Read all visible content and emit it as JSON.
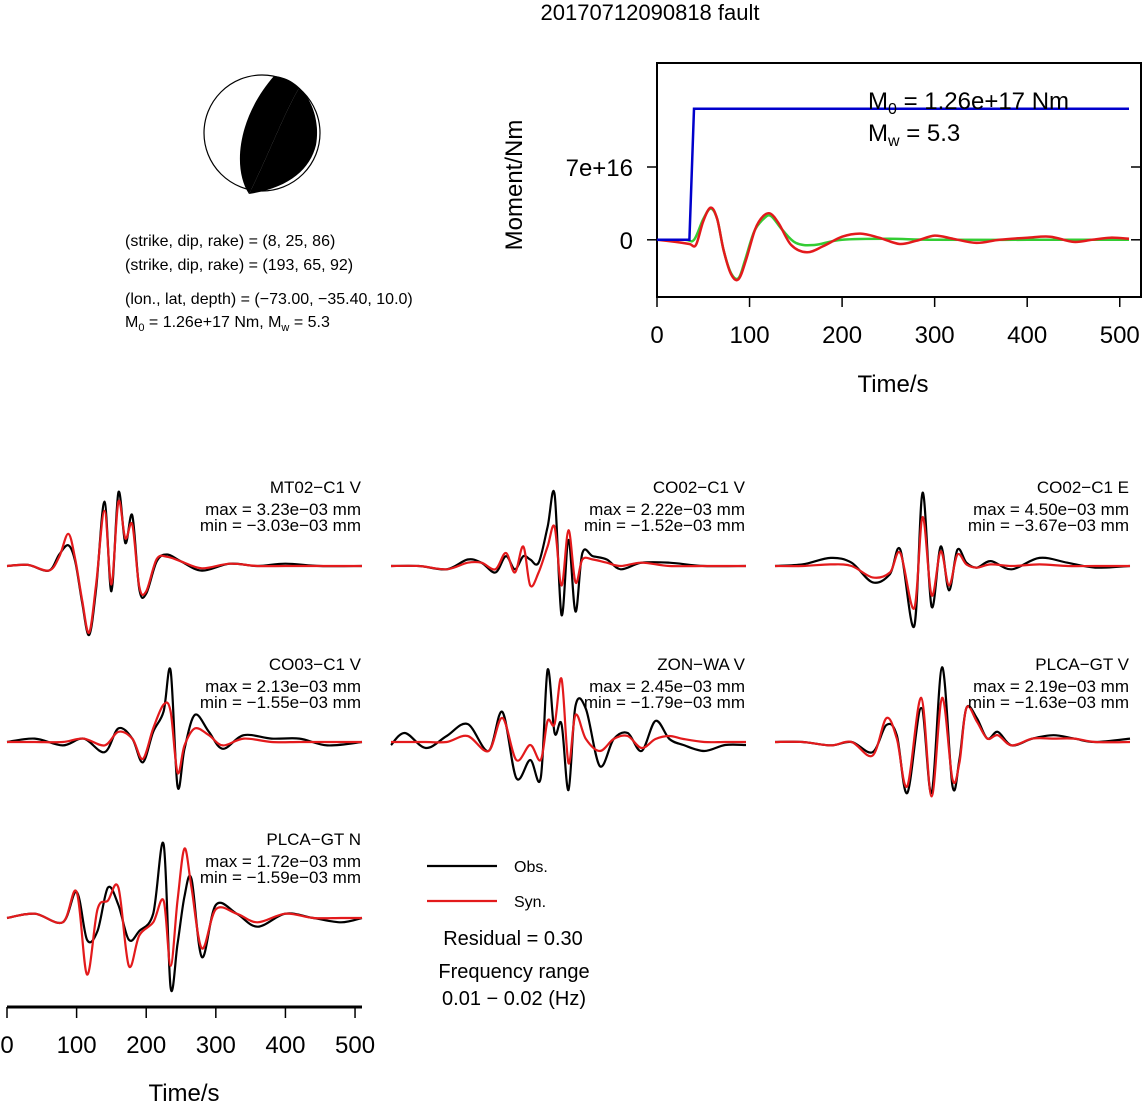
{
  "figure": {
    "title": "20170712090818 fault",
    "focal_mechanism": {
      "nodal_plane_1": "(strike, dip, rake) = (8, 25, 86)",
      "nodal_plane_2": "(strike, dip, rake) = (193, 65, 92)",
      "location": "(lon., lat, depth) = (−73.00, −35.40, 10.0)",
      "moment_prefix": "M",
      "moment_sub": "0",
      "moment_mid": " = 1.26e+17 Nm, M",
      "mw_sub": "w",
      "mw_value": " = 5.3"
    },
    "legend": {
      "obs_label": "Obs.",
      "syn_label": "Syn.",
      "residual": "Residual = 0.30",
      "freq_title": "Frequency range",
      "freq_value": "0.01 − 0.02 (Hz)"
    },
    "colors": {
      "observed": "#000000",
      "synthetic": "#e31a1c",
      "moment_cumulative": "#0000cc",
      "moment_rate_smooth": "#33cc33"
    }
  },
  "chart_data": [
    {
      "type": "line",
      "title": "",
      "xlabel": "Time/s",
      "ylabel": "Moment/Nm",
      "xlim": [
        0,
        510
      ],
      "ylim": [
        -5.5e+16,
        1.7e+17
      ],
      "xticks": [
        0,
        100,
        200,
        300,
        400,
        500
      ],
      "yticks": [
        {
          "value": 0,
          "label": "0"
        },
        {
          "value": 7e+16,
          "label": "7e+16"
        }
      ],
      "annotation": {
        "m0_prefix": "M",
        "m0_sub": "0",
        "m0_value": " = 1.26e+17 Nm",
        "mw_prefix": "M",
        "mw_sub": "w",
        "mw_value": " = 5.3"
      },
      "series": [
        {
          "color": "blue",
          "x": [
            0,
            35,
            40,
            510
          ],
          "y": [
            0,
            0,
            1.26e+17,
            1.26e+17
          ]
        },
        {
          "color": "green",
          "x": [
            0,
            30,
            40,
            50,
            58,
            65,
            72,
            80,
            88,
            95,
            105,
            115,
            123,
            135,
            150,
            170,
            200,
            250,
            300,
            400,
            510
          ],
          "y": [
            0,
            0,
            0,
            2e+16,
            3e+16,
            2e+16,
            -1e+16,
            -3.2e+16,
            -3.7e+16,
            -2e+16,
            8000000000000000.0,
            2e+16,
            2.3e+16,
            1e+16,
            -3000000000000000.0,
            -5000000000000000.0,
            0,
            1000000000000000.0,
            0,
            0,
            0
          ]
        },
        {
          "color": "red",
          "x": [
            0,
            20,
            35,
            42,
            50,
            58,
            65,
            72,
            80,
            88,
            96,
            106,
            115,
            123,
            132,
            145,
            162,
            180,
            200,
            220,
            240,
            262,
            280,
            300,
            320,
            345,
            370,
            400,
            425,
            450,
            470,
            490,
            510
          ],
          "y": [
            0,
            -2000000000000000.0,
            -4000000000000000.0,
            -5000000000000000.0,
            1.8e+16,
            3.1e+16,
            2e+16,
            -1e+16,
            -3.3e+16,
            -3.8e+16,
            -2e+16,
            1e+16,
            2.3e+16,
            2.5e+16,
            1.5e+16,
            -5000000000000000.0,
            -1.2e+16,
            -6000000000000000.0,
            3000000000000000.0,
            6000000000000000.0,
            2000000000000000.0,
            -4000000000000000.0,
            -1000000000000000.0,
            4000000000000000.0,
            1000000000000000.0,
            -3000000000000000.0,
            0,
            2000000000000000.0,
            3000000000000000.0,
            -2000000000000000.0,
            0,
            2000000000000000.0,
            1000000000000000.0
          ]
        }
      ]
    },
    {
      "type": "line",
      "title": "MT02−C1 V",
      "max_label": "max = 3.23e−03 mm",
      "min_label": "min = −3.03e−03 mm",
      "xlim": [
        0,
        510
      ],
      "ylim": [
        -0.0034,
        0.0034
      ],
      "series": [
        {
          "name": "Obs.",
          "x": [
            0,
            30,
            60,
            75,
            88,
            98,
            108,
            118,
            128,
            140,
            150,
            160,
            170,
            180,
            190,
            200,
            215,
            230,
            250,
            280,
            320,
            360,
            400,
            450,
            510
          ],
          "y": [
            0,
            5e-05,
            -0.0002,
            0.0005,
            0.0009,
            0.0002,
            -0.0016,
            -0.003,
            -0.001,
            0.0028,
            -0.0011,
            0.0032,
            0.001,
            0.0022,
            -0.001,
            -0.0012,
            0.0002,
            0.0005,
            0.0002,
            -0.0002,
            0.0001,
            0,
            0.0001,
            0,
            0
          ]
        },
        {
          "name": "Syn.",
          "x": [
            0,
            30,
            60,
            75,
            88,
            98,
            108,
            118,
            128,
            140,
            150,
            160,
            170,
            180,
            190,
            200,
            215,
            230,
            250,
            280,
            320,
            360,
            400,
            450,
            510
          ],
          "y": [
            0,
            5e-05,
            -0.0002,
            0.0004,
            0.0014,
            0.0003,
            -0.0015,
            -0.0029,
            -0.0008,
            0.0024,
            -0.0008,
            0.0028,
            0.0012,
            0.0018,
            -0.0009,
            -0.0011,
            0.0003,
            0.0004,
            0.0002,
            -0.0001,
            0.0001,
            0,
            0,
            0,
            0
          ]
        }
      ]
    },
    {
      "type": "line",
      "title": "CO02−C1 V",
      "max_label": "max = 2.22e−03 mm",
      "min_label": "min = −1.52e−03 mm",
      "xlim": [
        0,
        510
      ],
      "ylim": [
        -0.0016,
        0.0024
      ],
      "series": [
        {
          "name": "Obs.",
          "x": [
            0,
            40,
            80,
            110,
            130,
            150,
            165,
            178,
            190,
            200,
            212,
            225,
            235,
            245,
            255,
            265,
            275,
            290,
            310,
            330,
            360,
            400,
            450,
            510
          ],
          "y": [
            0,
            0,
            -0.0001,
            0.0002,
            0.0001,
            -0.0002,
            0.0003,
            -0.0001,
            0.0003,
            0.0002,
            0.0001,
            0.0012,
            0.0022,
            -0.0015,
            0.0008,
            -0.0014,
            0.0004,
            0.0003,
            0.0002,
            -0.0001,
            0.0001,
            0.0001,
            0,
            0
          ]
        },
        {
          "name": "Syn.",
          "x": [
            0,
            40,
            80,
            110,
            130,
            150,
            165,
            178,
            190,
            200,
            212,
            225,
            235,
            245,
            255,
            265,
            275,
            290,
            310,
            330,
            360,
            400,
            450,
            510
          ],
          "y": [
            0,
            0,
            -0.0001,
            0.0001,
            0.0001,
            -0.0001,
            0.0004,
            -0.0002,
            0.0006,
            -0.0006,
            -0.0002,
            0.0006,
            0.0012,
            -0.0006,
            0.0011,
            -0.0005,
            0.0002,
            0.0002,
            0.0001,
            0,
            0.0001,
            0,
            0,
            0
          ]
        }
      ]
    },
    {
      "type": "line",
      "title": "CO02−C1 E",
      "max_label": "max = 4.50e−03 mm",
      "min_label": "min = −3.67e−03 mm",
      "xlim": [
        0,
        510
      ],
      "ylim": [
        -0.004,
        0.0048
      ],
      "series": [
        {
          "name": "Obs.",
          "x": [
            0,
            40,
            80,
            110,
            140,
            165,
            180,
            200,
            212,
            225,
            238,
            250,
            262,
            275,
            290,
            310,
            340,
            380,
            420,
            460,
            510
          ],
          "y": [
            0,
            0.0001,
            0.0005,
            0.0002,
            -0.001,
            -0.0005,
            0.001,
            -0.0037,
            0.0045,
            -0.0025,
            0.0012,
            -0.0015,
            0.001,
            0.0002,
            -0.0001,
            0.0003,
            -0.0002,
            0.0005,
            0.0002,
            -0.0001,
            0
          ]
        },
        {
          "name": "Syn.",
          "x": [
            0,
            40,
            80,
            110,
            140,
            165,
            180,
            200,
            212,
            225,
            238,
            250,
            262,
            275,
            290,
            310,
            340,
            380,
            420,
            460,
            510
          ],
          "y": [
            0,
            0,
            0.0001,
            0,
            -0.0007,
            -0.0004,
            0.0008,
            -0.0026,
            0.003,
            -0.0018,
            0.0009,
            -0.0012,
            0.0007,
            0.0001,
            -0.0001,
            0.0001,
            0,
            0.0001,
            0,
            0,
            0
          ]
        }
      ]
    },
    {
      "type": "line",
      "title": "CO03−C1 V",
      "max_label": "max = 2.13e−03 mm",
      "min_label": "min = −1.55e−03 mm",
      "xlim": [
        0,
        510
      ],
      "ylim": [
        -0.0017,
        0.0023
      ],
      "series": [
        {
          "name": "Obs.",
          "x": [
            0,
            40,
            80,
            110,
            140,
            160,
            180,
            195,
            210,
            225,
            235,
            245,
            255,
            270,
            290,
            310,
            340,
            380,
            420,
            460,
            510
          ],
          "y": [
            0,
            0.0001,
            -0.0001,
            0.0001,
            -0.0003,
            0.0004,
            0.0001,
            -0.0006,
            0.0003,
            0.0009,
            0.0021,
            -0.0013,
            -0.0002,
            0.0008,
            0.0003,
            -0.0002,
            0.0002,
            0.0001,
            0.0001,
            -0.0001,
            0
          ]
        },
        {
          "name": "Syn.",
          "x": [
            0,
            40,
            80,
            110,
            140,
            160,
            180,
            195,
            210,
            225,
            235,
            245,
            255,
            270,
            290,
            310,
            340,
            380,
            420,
            460,
            510
          ],
          "y": [
            0,
            0,
            0,
            0.0001,
            -0.0001,
            0.0003,
            0.0001,
            -0.0005,
            0.0004,
            0.0011,
            0.0009,
            -0.0009,
            -0.0001,
            0.0004,
            0.0002,
            -0.0001,
            0.0001,
            0,
            0,
            0,
            0
          ]
        }
      ]
    },
    {
      "type": "line",
      "title": "ZON−WA V",
      "max_label": "max = 2.45e−03 mm",
      "min_label": "min = −1.79e−03 mm",
      "xlim": [
        0,
        510
      ],
      "ylim": [
        -0.0019,
        0.0026
      ],
      "series": [
        {
          "name": "Obs.",
          "x": [
            0,
            20,
            50,
            80,
            110,
            140,
            160,
            180,
            200,
            215,
            225,
            235,
            245,
            255,
            265,
            280,
            300,
            320,
            340,
            360,
            380,
            400,
            420,
            450,
            480,
            510
          ],
          "y": [
            -0.0001,
            0.0003,
            -0.0002,
            0.0002,
            0.0006,
            -0.0003,
            0.001,
            -0.0012,
            -0.0006,
            -0.0012,
            0.0024,
            0.0003,
            0.0006,
            -0.0016,
            0.0012,
            0.0011,
            -0.0008,
            0.0001,
            0.0003,
            -0.0003,
            0.0007,
            0.0001,
            -0.0001,
            -0.0003,
            -0.0001,
            -0.0001
          ]
        },
        {
          "name": "Syn.",
          "x": [
            0,
            20,
            50,
            80,
            110,
            140,
            160,
            180,
            200,
            215,
            225,
            235,
            245,
            255,
            265,
            280,
            300,
            320,
            340,
            360,
            380,
            400,
            420,
            450,
            480,
            510
          ],
          "y": [
            0,
            0,
            0,
            0,
            0.0002,
            -0.0003,
            0.0008,
            -0.0006,
            -0.0001,
            -0.0006,
            0.0007,
            0.0006,
            0.0021,
            -0.0007,
            0.0009,
            0.0001,
            -0.0003,
            0.0001,
            0.0002,
            -0.0002,
            0.0001,
            0.0002,
            0.0001,
            0,
            0,
            0
          ]
        }
      ]
    },
    {
      "type": "line",
      "title": "PLCA−GT V",
      "max_label": "max = 2.19e−03 mm",
      "min_label": "min = −1.63e−03 mm",
      "xlim": [
        0,
        510
      ],
      "ylim": [
        -0.0018,
        0.0023
      ],
      "series": [
        {
          "name": "Obs.",
          "x": [
            0,
            40,
            80,
            110,
            140,
            160,
            175,
            190,
            210,
            225,
            240,
            255,
            265,
            275,
            290,
            305,
            320,
            340,
            370,
            400,
            430,
            460,
            510
          ],
          "y": [
            0,
            0,
            -0.0001,
            0,
            -0.0003,
            0.0005,
            0.0002,
            -0.0015,
            0.001,
            -0.0015,
            0.0022,
            -0.0013,
            -0.0005,
            0.001,
            0.0007,
            0.0001,
            0.0003,
            -0.0001,
            0.0001,
            0.0002,
            0.0001,
            0,
            0.0001
          ]
        },
        {
          "name": "Syn.",
          "x": [
            0,
            40,
            80,
            110,
            140,
            160,
            175,
            190,
            210,
            225,
            240,
            255,
            265,
            275,
            290,
            305,
            320,
            340,
            370,
            400,
            430,
            460,
            510
          ],
          "y": [
            0,
            0,
            -0.0001,
            0,
            -0.0004,
            0.0007,
            0.0001,
            -0.0013,
            0.0013,
            -0.0016,
            0.0013,
            -0.0011,
            -0.0006,
            0.001,
            0.0006,
            0.0001,
            0.0002,
            -0.0001,
            0.0001,
            0.0001,
            0.0001,
            0,
            0
          ]
        }
      ]
    },
    {
      "type": "line",
      "title": "PLCA−GT N",
      "max_label": "max = 1.72e−03 mm",
      "min_label": "min = −1.59e−03 mm",
      "xlabel": "Time/s",
      "xlim": [
        0,
        510
      ],
      "ylim": [
        -0.0017,
        0.0018
      ],
      "xticks": [
        0,
        100,
        200,
        300,
        400,
        500
      ],
      "series": [
        {
          "name": "Obs.",
          "x": [
            0,
            40,
            80,
            100,
            115,
            130,
            145,
            160,
            175,
            190,
            210,
            225,
            235,
            245,
            255,
            265,
            280,
            300,
            330,
            360,
            400,
            440,
            480,
            510
          ],
          "y": [
            0,
            0.0001,
            -0.0001,
            0.0006,
            -0.0005,
            -0.0003,
            0.0007,
            0.0003,
            -0.0005,
            -0.0003,
            0.0001,
            0.0017,
            -0.0016,
            -0.0006,
            0.0005,
            0.0009,
            -0.0009,
            0.0003,
            0.0001,
            -0.0002,
            0.0001,
            0,
            -0.0001,
            0
          ]
        },
        {
          "name": "Syn.",
          "x": [
            0,
            40,
            80,
            100,
            115,
            130,
            145,
            160,
            175,
            190,
            210,
            225,
            235,
            245,
            255,
            265,
            280,
            300,
            330,
            360,
            400,
            440,
            480,
            510
          ],
          "y": [
            0,
            0.0001,
            -0.0001,
            0.0006,
            -0.0013,
            0.0002,
            0.0004,
            0.0007,
            -0.0011,
            -0.0004,
            -0.0001,
            0.0004,
            -0.0011,
            0.0004,
            0.0016,
            0.0007,
            -0.0007,
            0.0002,
            0.0001,
            -0.0001,
            0.0001,
            0,
            0,
            0
          ]
        }
      ]
    }
  ]
}
